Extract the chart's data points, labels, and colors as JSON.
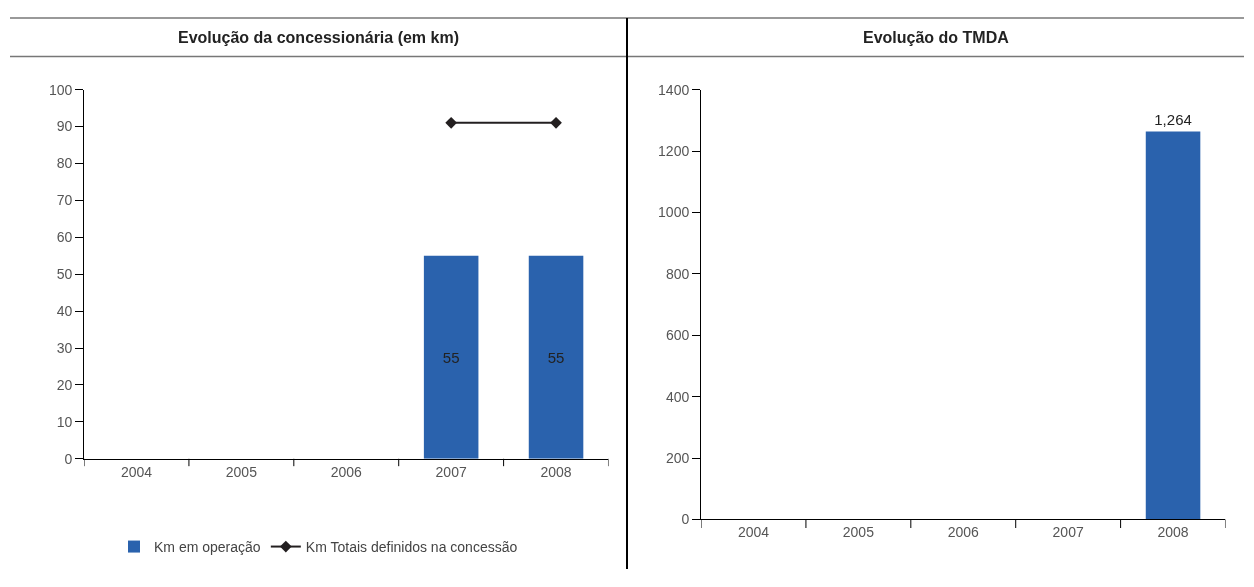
{
  "chart_data": [
    {
      "type": "bar",
      "title": "Evolução da concessionária (em km)",
      "categories": [
        "2004",
        "2005",
        "2006",
        "2007",
        "2008"
      ],
      "ylim": [
        0,
        100
      ],
      "yticks": [
        0,
        10,
        20,
        30,
        40,
        50,
        60,
        70,
        80,
        90,
        100
      ],
      "legend": "bottom",
      "series": [
        {
          "name": "Km em operação",
          "color": "#2a62ad",
          "values": [
            null,
            null,
            null,
            55,
            55
          ],
          "value_labels": [
            null,
            null,
            null,
            "55",
            "55"
          ]
        },
        {
          "name": "Km Totais definidos na concessão",
          "type": "line",
          "color": "#231f20",
          "marker": "diamond",
          "values": [
            null,
            null,
            null,
            91,
            91
          ]
        }
      ]
    },
    {
      "type": "bar",
      "title": "Evolução do TMDA",
      "categories": [
        "2004",
        "2005",
        "2006",
        "2007",
        "2008"
      ],
      "ylim": [
        0,
        1400
      ],
      "yticks": [
        0,
        200,
        400,
        600,
        800,
        1000,
        1200,
        1400
      ],
      "legend": false,
      "series": [
        {
          "color": "#2a62ad",
          "values": [
            null,
            null,
            null,
            null,
            1264
          ],
          "value_labels": [
            null,
            null,
            null,
            null,
            "1,264"
          ]
        }
      ]
    }
  ]
}
